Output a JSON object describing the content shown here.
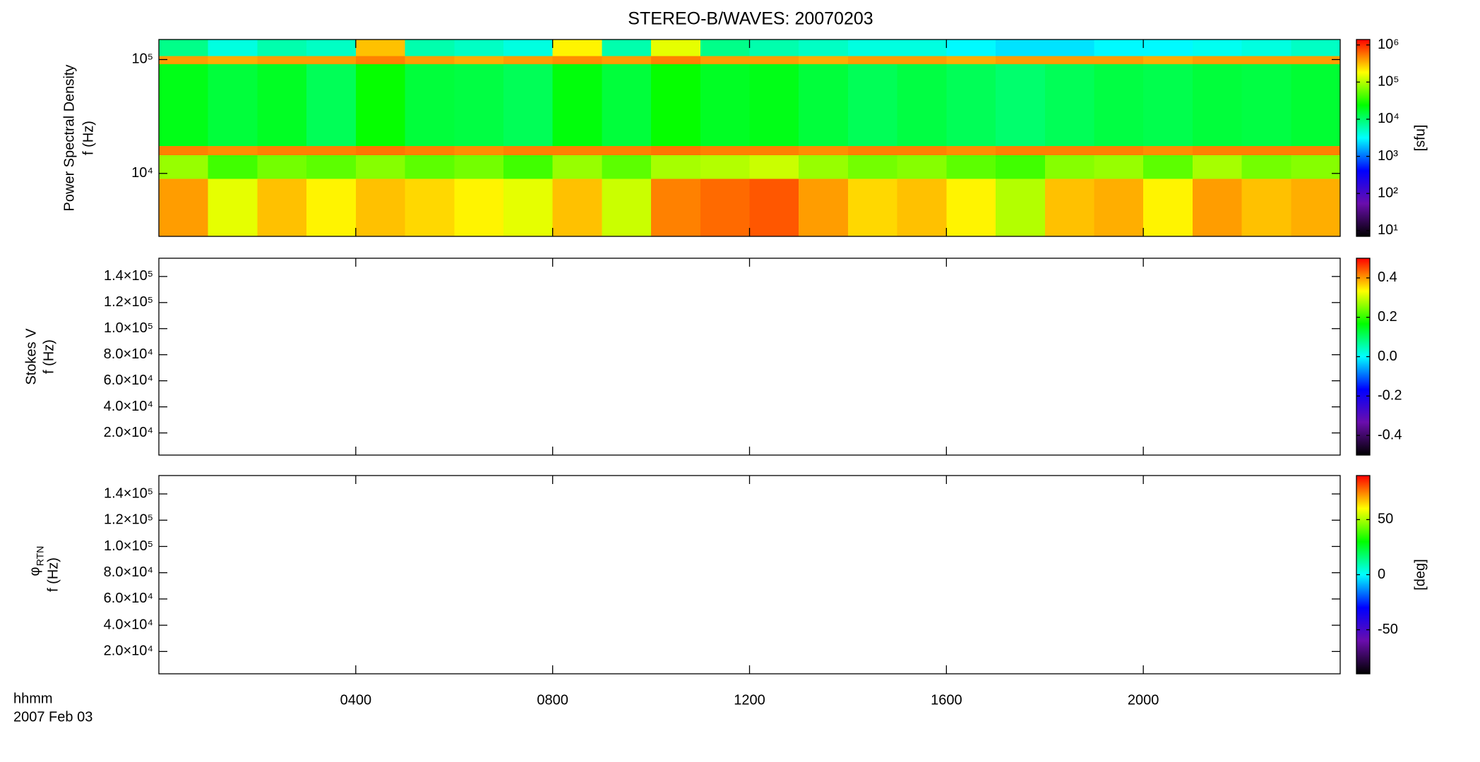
{
  "title": "STEREO-B/WAVES: 20070203",
  "x_axis_label": "hhmm",
  "date_label": "2007 Feb 03",
  "chart_data": [
    {
      "type": "heatmap",
      "ylabel": [
        "Power Spectral Density",
        "f (Hz)"
      ],
      "ylog": true,
      "ylim": [
        2800,
        150000
      ],
      "yticks": [
        {
          "value": 10000,
          "label": "10⁴"
        },
        {
          "value": 100000,
          "label": "10⁵"
        }
      ],
      "x_edges": [
        0,
        1,
        2,
        3,
        4,
        5,
        6,
        7,
        8,
        9,
        10,
        11,
        12,
        13,
        14,
        15,
        16,
        17,
        18,
        19,
        20,
        21,
        22,
        23,
        24
      ],
      "y_edges": [
        2800,
        9000,
        14500,
        17500,
        92000,
        108000,
        150000
      ],
      "z": [
        [
          400000,
          150000,
          300000,
          200000,
          300000,
          250000,
          200000,
          150000,
          300000,
          120000,
          500000,
          600000,
          700000,
          400000,
          250000,
          300000,
          200000,
          100000,
          300000,
          350000,
          200000,
          400000,
          300000,
          350000
        ],
        [
          80000,
          40000,
          60000,
          50000,
          70000,
          50000,
          60000,
          40000,
          80000,
          50000,
          90000,
          100000,
          120000,
          80000,
          60000,
          70000,
          50000,
          40000,
          70000,
          80000,
          50000,
          90000,
          60000,
          70000
        ],
        [
          500000,
          450000,
          500000,
          500000,
          550000,
          500000,
          450000,
          500000,
          500000,
          500000,
          550000,
          500000,
          500000,
          450000,
          500000,
          500000,
          450000,
          500000,
          500000,
          500000,
          450000,
          500000,
          500000,
          500000
        ],
        [
          20000,
          15000,
          18000,
          12000,
          25000,
          15000,
          14000,
          12000,
          22000,
          15000,
          25000,
          18000,
          20000,
          15000,
          12000,
          14000,
          12000,
          10000,
          12000,
          14000,
          13000,
          15000,
          14000,
          16000
        ],
        [
          400000,
          350000,
          400000,
          400000,
          500000,
          400000,
          350000,
          400000,
          450000,
          400000,
          500000,
          400000,
          400000,
          350000,
          400000,
          400000,
          350000,
          400000,
          400000,
          400000,
          350000,
          400000,
          400000,
          400000
        ],
        [
          8000,
          4000,
          6000,
          5000,
          300000,
          6000,
          5000,
          4000,
          200000,
          6000,
          150000,
          8000,
          6000,
          5000,
          4000,
          4000,
          3000,
          2500,
          2500,
          3000,
          3000,
          3500,
          4000,
          5000
        ]
      ],
      "colormap": [
        "#000000",
        "#6a0dad",
        "#0000ff",
        "#00ffff",
        "#00ff00",
        "#ffff00",
        "#ff0000"
      ],
      "colorbar": {
        "log": true,
        "lim": [
          7,
          1400000
        ],
        "label": "[sfu]",
        "ticks": [
          {
            "value": 10,
            "label": "10¹"
          },
          {
            "value": 100,
            "label": "10²"
          },
          {
            "value": 1000,
            "label": "10³"
          },
          {
            "value": 10000,
            "label": "10⁴"
          },
          {
            "value": 100000,
            "label": "10⁵"
          },
          {
            "value": 1000000,
            "label": "10⁶"
          }
        ]
      }
    },
    {
      "type": "heatmap",
      "ylabel": [
        "Stokes V",
        "f (Hz)"
      ],
      "ylim": [
        3000,
        154000
      ],
      "yticks": [
        {
          "value": 20000,
          "label": "2.0×10⁴"
        },
        {
          "value": 40000,
          "label": "4.0×10⁴"
        },
        {
          "value": 60000,
          "label": "6.0×10⁴"
        },
        {
          "value": 80000,
          "label": "8.0×10⁴"
        },
        {
          "value": 100000,
          "label": "1.0×10⁵"
        },
        {
          "value": 120000,
          "label": "1.2×10⁵"
        },
        {
          "value": 140000,
          "label": "1.4×10⁵"
        }
      ],
      "colormap": [
        "#000000",
        "#6a0dad",
        "#0000ff",
        "#00ffff",
        "#00ff00",
        "#ffff00",
        "#ff0000"
      ],
      "colorbar": {
        "lim": [
          -0.5,
          0.5
        ],
        "ticks": [
          -0.4,
          -0.2,
          {
            "value": 0,
            "label": "0.0"
          },
          0.2,
          0.4
        ]
      }
    },
    {
      "type": "heatmap",
      "ylabel_symbol": "φ",
      "ylabel_subscript": "RTN",
      "ylabel": [
        "f (Hz)"
      ],
      "ylim": [
        3000,
        154000
      ],
      "yticks": [
        {
          "value": 20000,
          "label": "2.0×10⁴"
        },
        {
          "value": 40000,
          "label": "4.0×10⁴"
        },
        {
          "value": 60000,
          "label": "6.0×10⁴"
        },
        {
          "value": 80000,
          "label": "8.0×10⁴"
        },
        {
          "value": 100000,
          "label": "1.0×10⁵"
        },
        {
          "value": 120000,
          "label": "1.2×10⁵"
        },
        {
          "value": 140000,
          "label": "1.4×10⁵"
        }
      ],
      "colormap": [
        "#000000",
        "#6a0dad",
        "#0000ff",
        "#00ffff",
        "#00ff00",
        "#ffff00",
        "#ff0000"
      ],
      "colorbar": {
        "lim": [
          -90,
          90
        ],
        "label": "[deg]",
        "ticks": [
          -50,
          0,
          50
        ]
      },
      "xlim": [
        0,
        24
      ],
      "xticks": [
        {
          "value": 4,
          "label": "0400"
        },
        {
          "value": 8,
          "label": "0800"
        },
        {
          "value": 12,
          "label": "1200"
        },
        {
          "value": 16,
          "label": "1600"
        },
        {
          "value": 20,
          "label": "2000"
        }
      ]
    }
  ]
}
